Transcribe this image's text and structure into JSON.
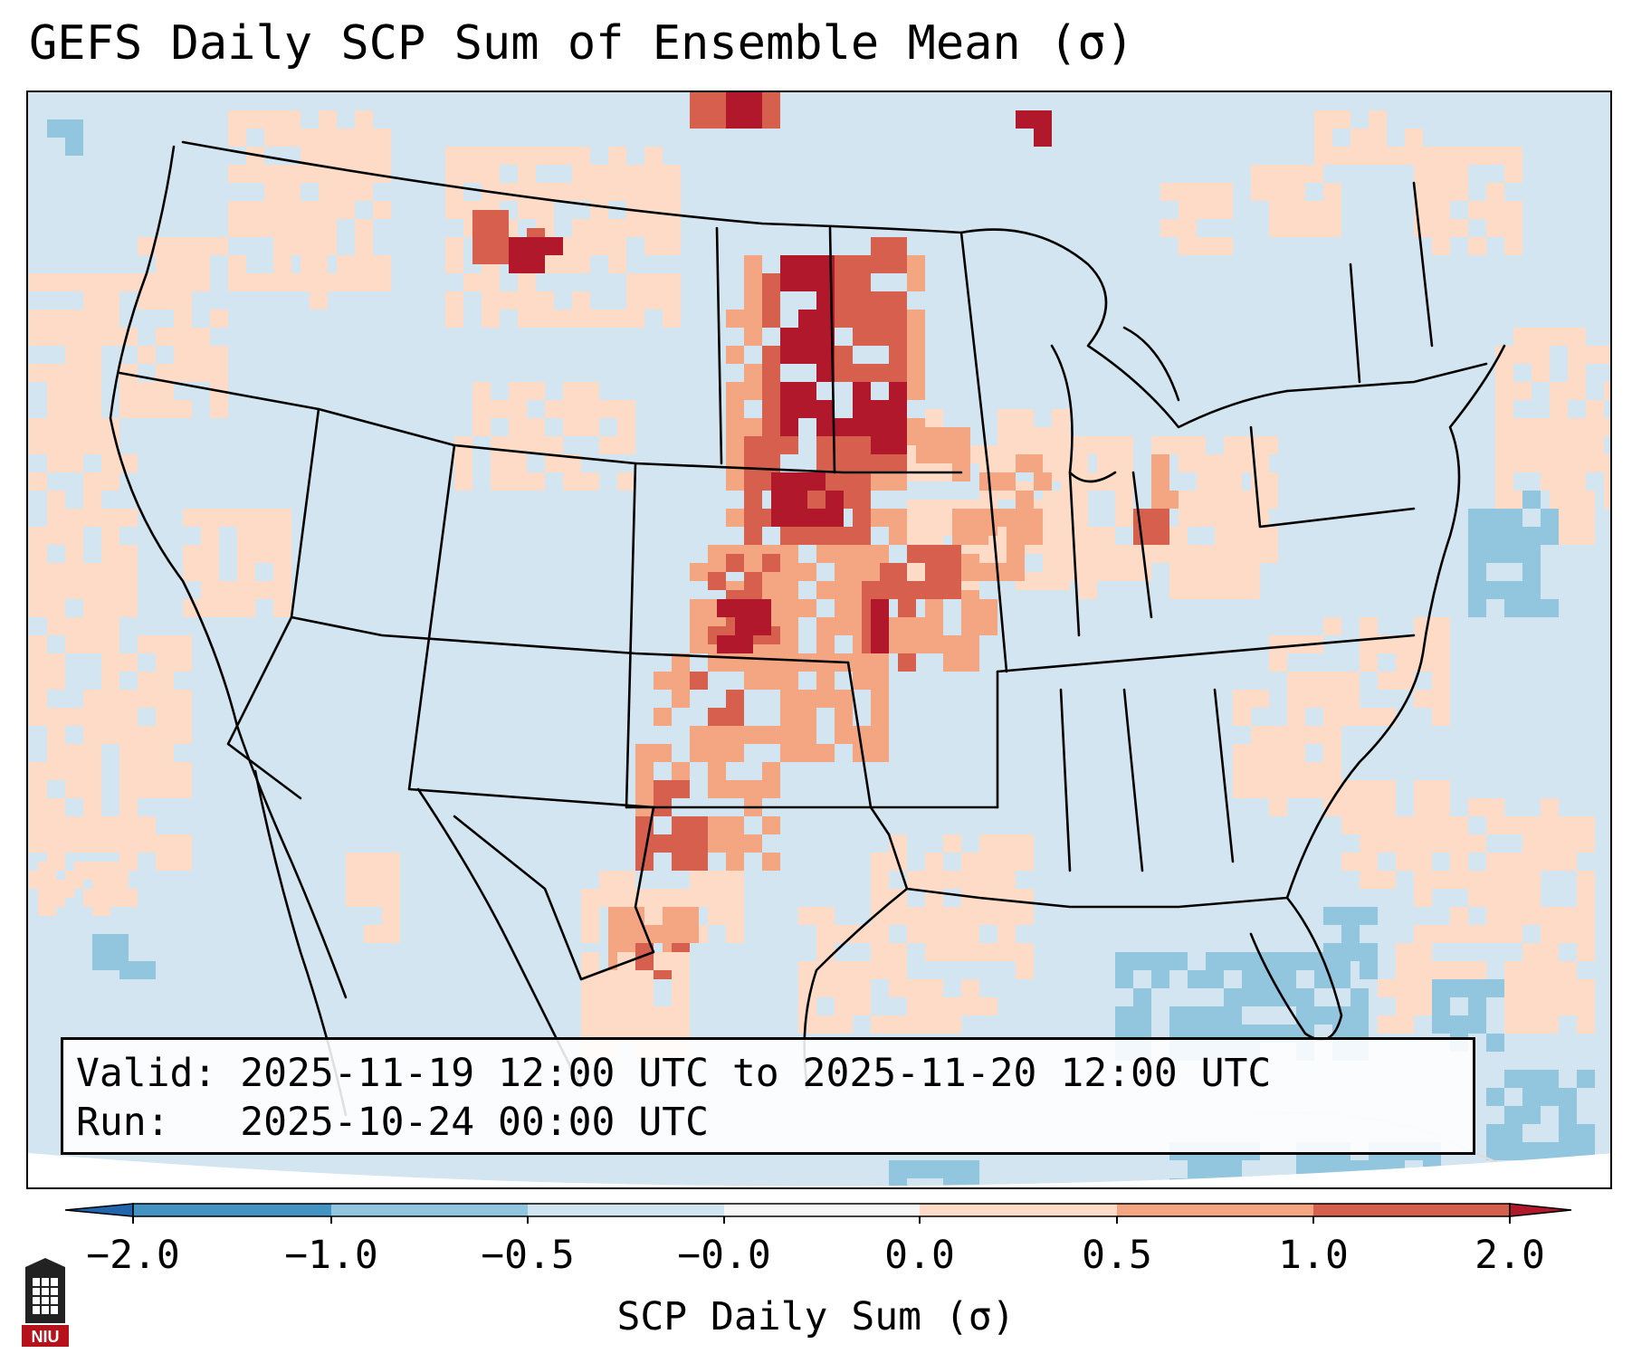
{
  "title": "GEFS Daily SCP Sum of Ensemble Mean (σ)",
  "info": {
    "valid_label": "Valid:",
    "valid_text": "2025-11-19 12:00 UTC to 2025-11-20 12:00 UTC",
    "run_label": "Run:",
    "run_text": "2025-10-24 00:00 UTC"
  },
  "colorbar": {
    "label": "SCP Daily Sum (σ)",
    "ticks": [
      "−2.0",
      "−1.0",
      "−0.5",
      "−0.0",
      "0.0",
      "0.5",
      "1.0",
      "2.0"
    ],
    "colors": [
      "#2166ac",
      "#4393c3",
      "#92c5de",
      "#d1e5f0",
      "#fddbc7",
      "#f4a582",
      "#d6604d",
      "#b2182b"
    ]
  },
  "logo": {
    "text": "NIU",
    "color": "#b5121b"
  }
}
